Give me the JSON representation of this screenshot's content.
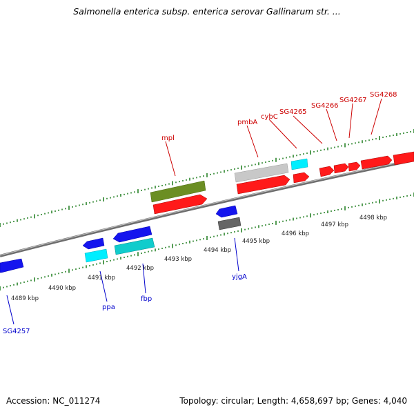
{
  "title": "Salmonella enterica subsp. enterica serovar Gallinarum str. ...",
  "footer": {
    "accession": "Accession: NC_011274",
    "summary": "Topology: circular; Length: 4,658,697 bp; Genes: 4,040"
  },
  "colors": {
    "plus_strand": "#ff0000",
    "minus_strand": "#0000ee",
    "olive": "#6b8e23",
    "cyan": "#00e5ee",
    "gray": "#bbbbbb",
    "dark_gray": "#666666",
    "tick": "#1a7a1a",
    "backbone": "#8a8a8a"
  },
  "scale_labels": [
    {
      "kbp": 4489,
      "label": "4489 kbp"
    },
    {
      "kbp": 4490,
      "label": "4490 kbp"
    },
    {
      "kbp": 4491,
      "label": "4491 kbp"
    },
    {
      "kbp": 4492,
      "label": "4492 kbp"
    },
    {
      "kbp": 4493,
      "label": "4493 kbp"
    },
    {
      "kbp": 4494,
      "label": "4494 kbp"
    },
    {
      "kbp": 4495,
      "label": "4495 kbp"
    },
    {
      "kbp": 4496,
      "label": "4496 kbp"
    },
    {
      "kbp": 4497,
      "label": "4497 kbp"
    },
    {
      "kbp": 4498,
      "label": "4498 kbp"
    }
  ],
  "gene_labels_top": [
    "mpl",
    "pmbA",
    "cybC",
    "SG4265",
    "SG4266",
    "SG4267",
    "SG4268"
  ],
  "gene_labels_bottom": [
    "SG4257",
    "ppa",
    "fbp",
    "yjgA"
  ]
}
